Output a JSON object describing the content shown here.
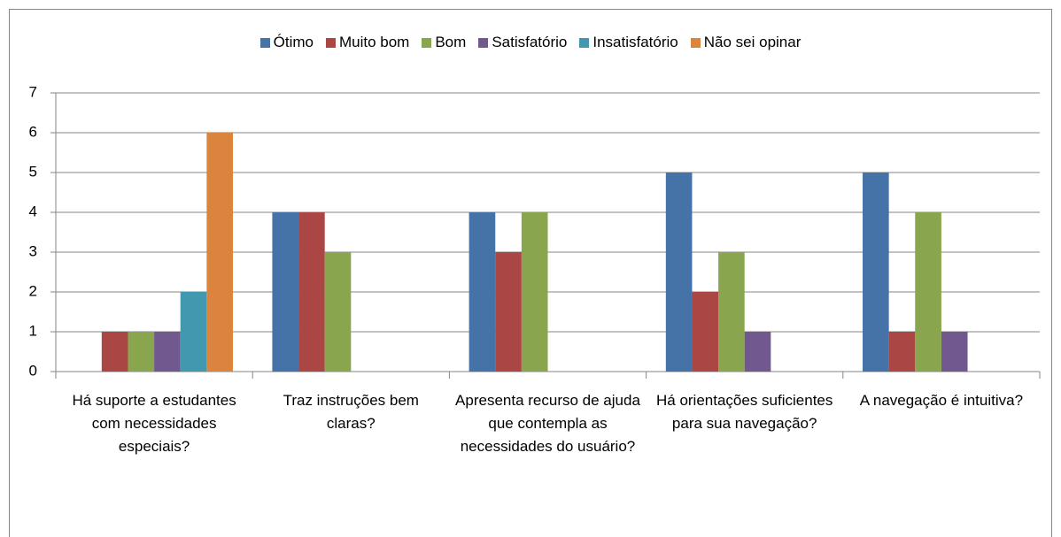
{
  "chart_data": {
    "type": "bar",
    "categories": [
      "Há suporte a estudantes com necessidades especiais?",
      "Traz instruções bem claras?",
      "Apresenta recurso de ajuda que contempla as necessidades do usuário?",
      "Há orientações suficientes para sua navegação?",
      "A navegação é intuitiva?"
    ],
    "series": [
      {
        "name": "Ótimo",
        "color": "#4572a7",
        "values": [
          0,
          4,
          4,
          5,
          5
        ]
      },
      {
        "name": "Muito bom",
        "color": "#aa4643",
        "values": [
          1,
          4,
          3,
          2,
          1
        ]
      },
      {
        "name": "Bom",
        "color": "#89a54e",
        "values": [
          1,
          3,
          4,
          3,
          4
        ]
      },
      {
        "name": "Satisfatório",
        "color": "#71588f",
        "values": [
          1,
          0,
          0,
          1,
          1
        ]
      },
      {
        "name": "Insatisfatório",
        "color": "#4198af",
        "values": [
          2,
          0,
          0,
          0,
          0
        ]
      },
      {
        "name": "Não sei opinar",
        "color": "#db843d",
        "values": [
          6,
          0,
          0,
          0,
          0
        ]
      }
    ],
    "ylim": [
      0,
      7
    ],
    "yticks": [
      0,
      1,
      2,
      3,
      4,
      5,
      6,
      7
    ],
    "grid": true,
    "legend": "top"
  }
}
